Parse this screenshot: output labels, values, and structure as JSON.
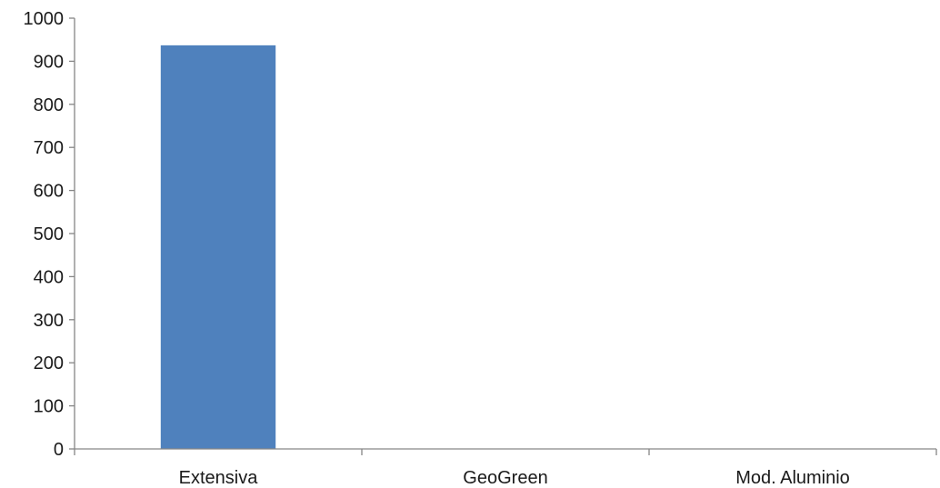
{
  "chart_data": {
    "type": "bar",
    "title": "",
    "xlabel": "",
    "ylabel": "",
    "categories": [
      "Extensiva",
      "GeoGreen",
      "Mod. Aluminio"
    ],
    "values": [
      937,
      1,
      1
    ],
    "ylim": [
      0,
      1000
    ],
    "yticks": [
      0,
      100,
      200,
      300,
      400,
      500,
      600,
      700,
      800,
      900,
      1000
    ],
    "grid": false,
    "legend": "none",
    "bar_color": "#4f81bd",
    "axis_color": "#868686"
  }
}
